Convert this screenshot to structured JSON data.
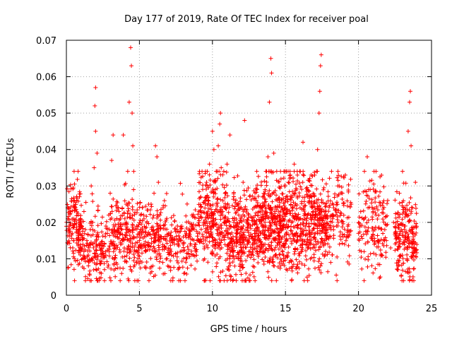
{
  "chart_data": {
    "type": "scatter",
    "title": "Day 177 of 2019, Rate Of TEC Index for receiver poal",
    "xlabel": "GPS time / hours",
    "ylabel": "ROTI / TECUs",
    "xlim": [
      0,
      25
    ],
    "ylim": [
      0,
      0.07
    ],
    "xticks": [
      0,
      5,
      10,
      15,
      20,
      25
    ],
    "xtick_labels": [
      "0",
      "5",
      "10",
      "15",
      "20",
      "25"
    ],
    "yticks": [
      0,
      0.01,
      0.02,
      0.03,
      0.04,
      0.05,
      0.06,
      0.07
    ],
    "ytick_labels": [
      "0",
      "0.01",
      "0.02",
      "0.03",
      "0.04",
      "0.05",
      "0.06",
      "0.07"
    ],
    "grid": true,
    "marker": "plus",
    "color": "#ff0000",
    "series": [
      {
        "points": [
          [
            0.1,
            0.021
          ],
          [
            0.2,
            0.019
          ],
          [
            0.3,
            0.023
          ],
          [
            0.4,
            0.017
          ],
          [
            0.5,
            0.015
          ],
          [
            0.6,
            0.024
          ],
          [
            0.7,
            0.026
          ],
          [
            0.8,
            0.022
          ],
          [
            0.9,
            0.019
          ],
          [
            1.0,
            0.013
          ],
          [
            1.1,
            0.01
          ],
          [
            1.2,
            0.012
          ],
          [
            1.3,
            0.018
          ],
          [
            1.4,
            0.015
          ],
          [
            1.5,
            0.011
          ],
          [
            1.6,
            0.014
          ],
          [
            1.7,
            0.03
          ],
          [
            1.8,
            0.02
          ],
          [
            1.9,
            0.035
          ],
          [
            1.95,
            0.052
          ],
          [
            2.0,
            0.045
          ],
          [
            2.0,
            0.057
          ],
          [
            2.1,
            0.039
          ],
          [
            2.2,
            0.016
          ],
          [
            2.3,
            0.013
          ],
          [
            2.4,
            0.006
          ],
          [
            2.5,
            0.012
          ],
          [
            2.6,
            0.014
          ],
          [
            2.7,
            0.011
          ],
          [
            2.8,
            0.017
          ],
          [
            2.9,
            0.022
          ],
          [
            3.0,
            0.028
          ],
          [
            3.1,
            0.037
          ],
          [
            3.2,
            0.044
          ],
          [
            3.3,
            0.013
          ],
          [
            3.4,
            0.009
          ],
          [
            3.5,
            0.016
          ],
          [
            3.6,
            0.023
          ],
          [
            3.7,
            0.014
          ],
          [
            3.8,
            0.018
          ],
          [
            3.9,
            0.044
          ],
          [
            4.0,
            0.021
          ],
          [
            4.1,
            0.025
          ],
          [
            4.2,
            0.034
          ],
          [
            4.3,
            0.053
          ],
          [
            4.4,
            0.068
          ],
          [
            4.45,
            0.063
          ],
          [
            4.5,
            0.05
          ],
          [
            4.55,
            0.041
          ],
          [
            4.6,
            0.029
          ],
          [
            4.7,
            0.012
          ],
          [
            4.8,
            0.009
          ],
          [
            4.9,
            0.01
          ],
          [
            5.0,
            0.015
          ],
          [
            5.2,
            0.018
          ],
          [
            5.4,
            0.012
          ],
          [
            5.6,
            0.014
          ],
          [
            5.8,
            0.025
          ],
          [
            6.0,
            0.028
          ],
          [
            6.1,
            0.041
          ],
          [
            6.2,
            0.038
          ],
          [
            6.3,
            0.031
          ],
          [
            6.4,
            0.022
          ],
          [
            6.5,
            0.016
          ],
          [
            6.6,
            0.009
          ],
          [
            6.8,
            0.013
          ],
          [
            7.0,
            0.017
          ],
          [
            7.2,
            0.011
          ],
          [
            7.4,
            0.014
          ],
          [
            7.6,
            0.019
          ],
          [
            7.8,
            0.012
          ],
          [
            8.0,
            0.016
          ],
          [
            8.2,
            0.01
          ],
          [
            8.4,
            0.018
          ],
          [
            8.6,
            0.022
          ],
          [
            8.8,
            0.014
          ],
          [
            9.0,
            0.017
          ],
          [
            9.2,
            0.027
          ],
          [
            9.4,
            0.02
          ],
          [
            9.6,
            0.031
          ],
          [
            9.8,
            0.036
          ],
          [
            10.0,
            0.045
          ],
          [
            10.1,
            0.04
          ],
          [
            10.2,
            0.029
          ],
          [
            10.3,
            0.018
          ],
          [
            10.4,
            0.041
          ],
          [
            10.5,
            0.047
          ],
          [
            10.55,
            0.05
          ],
          [
            10.6,
            0.035
          ],
          [
            10.7,
            0.023
          ],
          [
            10.8,
            0.004
          ],
          [
            10.9,
            0.028
          ],
          [
            11.0,
            0.036
          ],
          [
            11.2,
            0.044
          ],
          [
            11.4,
            0.013
          ],
          [
            11.6,
            0.016
          ],
          [
            11.8,
            0.022
          ],
          [
            12.0,
            0.008
          ],
          [
            12.1,
            0.031
          ],
          [
            12.2,
            0.048
          ],
          [
            12.4,
            0.014
          ],
          [
            12.6,
            0.019
          ],
          [
            12.8,
            0.011
          ],
          [
            13.0,
            0.026
          ],
          [
            13.2,
            0.023
          ],
          [
            13.4,
            0.017
          ],
          [
            13.6,
            0.029
          ],
          [
            13.8,
            0.038
          ],
          [
            13.9,
            0.053
          ],
          [
            14.0,
            0.065
          ],
          [
            14.05,
            0.061
          ],
          [
            14.2,
            0.039
          ],
          [
            14.4,
            0.034
          ],
          [
            14.6,
            0.022
          ],
          [
            14.8,
            0.018
          ],
          [
            15.0,
            0.026
          ],
          [
            15.2,
            0.031
          ],
          [
            15.4,
            0.02
          ],
          [
            15.6,
            0.036
          ],
          [
            15.8,
            0.016
          ],
          [
            16.0,
            0.024
          ],
          [
            16.2,
            0.042
          ],
          [
            16.4,
            0.014
          ],
          [
            16.6,
            0.017
          ],
          [
            16.8,
            0.027
          ],
          [
            17.0,
            0.033
          ],
          [
            17.2,
            0.04
          ],
          [
            17.3,
            0.05
          ],
          [
            17.35,
            0.056
          ],
          [
            17.4,
            0.063
          ],
          [
            17.45,
            0.066
          ],
          [
            17.5,
            0.021
          ],
          [
            17.7,
            0.011
          ],
          [
            17.9,
            0.018
          ],
          [
            18.1,
            0.009
          ],
          [
            18.3,
            0.024
          ],
          [
            18.5,
            0.019
          ],
          [
            18.7,
            0.014
          ],
          [
            18.9,
            0.028
          ],
          [
            19.1,
            0.033
          ],
          [
            19.3,
            0.016
          ],
          [
            19.5,
            0.025
          ],
          [
            20.0,
            0.017
          ],
          [
            20.2,
            0.012
          ],
          [
            20.4,
            0.021
          ],
          [
            20.6,
            0.038
          ],
          [
            20.8,
            0.029
          ],
          [
            21.0,
            0.023
          ],
          [
            21.2,
            0.034
          ],
          [
            21.4,
            0.015
          ],
          [
            21.6,
            0.011
          ],
          [
            21.8,
            0.018
          ],
          [
            22.0,
            0.026
          ],
          [
            22.2,
            0.013
          ],
          [
            22.4,
            0.02
          ],
          [
            22.6,
            0.016
          ],
          [
            22.8,
            0.028
          ],
          [
            23.0,
            0.011
          ],
          [
            23.2,
            0.019
          ],
          [
            23.4,
            0.045
          ],
          [
            23.5,
            0.053
          ],
          [
            23.55,
            0.056
          ],
          [
            23.6,
            0.041
          ],
          [
            23.7,
            0.024
          ],
          [
            23.8,
            0.014
          ],
          [
            23.9,
            0.031
          ]
        ]
      }
    ],
    "density_profile": [
      {
        "x_from": 0.0,
        "x_to": 1.0,
        "y_center": 0.019,
        "y_spread": 0.006,
        "count": 140
      },
      {
        "x_from": 1.0,
        "x_to": 2.2,
        "y_center": 0.014,
        "y_spread": 0.005,
        "count": 110
      },
      {
        "x_from": 2.2,
        "x_to": 3.0,
        "y_center": 0.012,
        "y_spread": 0.004,
        "count": 60
      },
      {
        "x_from": 3.0,
        "x_to": 4.0,
        "y_center": 0.016,
        "y_spread": 0.006,
        "count": 110
      },
      {
        "x_from": 4.0,
        "x_to": 5.0,
        "y_center": 0.017,
        "y_spread": 0.006,
        "count": 110
      },
      {
        "x_from": 5.0,
        "x_to": 7.0,
        "y_center": 0.016,
        "y_spread": 0.005,
        "count": 190
      },
      {
        "x_from": 7.0,
        "x_to": 9.0,
        "y_center": 0.014,
        "y_spread": 0.005,
        "count": 150
      },
      {
        "x_from": 9.0,
        "x_to": 11.0,
        "y_center": 0.02,
        "y_spread": 0.007,
        "count": 280
      },
      {
        "x_from": 11.0,
        "x_to": 13.0,
        "y_center": 0.016,
        "y_spread": 0.006,
        "count": 310
      },
      {
        "x_from": 13.0,
        "x_to": 15.0,
        "y_center": 0.02,
        "y_spread": 0.007,
        "count": 380
      },
      {
        "x_from": 15.0,
        "x_to": 17.0,
        "y_center": 0.02,
        "y_spread": 0.007,
        "count": 330
      },
      {
        "x_from": 17.0,
        "x_to": 18.0,
        "y_center": 0.019,
        "y_spread": 0.006,
        "count": 150
      },
      {
        "x_from": 18.0,
        "x_to": 19.5,
        "y_center": 0.021,
        "y_spread": 0.006,
        "count": 110
      },
      {
        "x_from": 20.0,
        "x_to": 22.0,
        "y_center": 0.019,
        "y_spread": 0.007,
        "count": 150
      },
      {
        "x_from": 22.5,
        "x_to": 24.0,
        "y_center": 0.016,
        "y_spread": 0.006,
        "count": 210
      }
    ]
  }
}
